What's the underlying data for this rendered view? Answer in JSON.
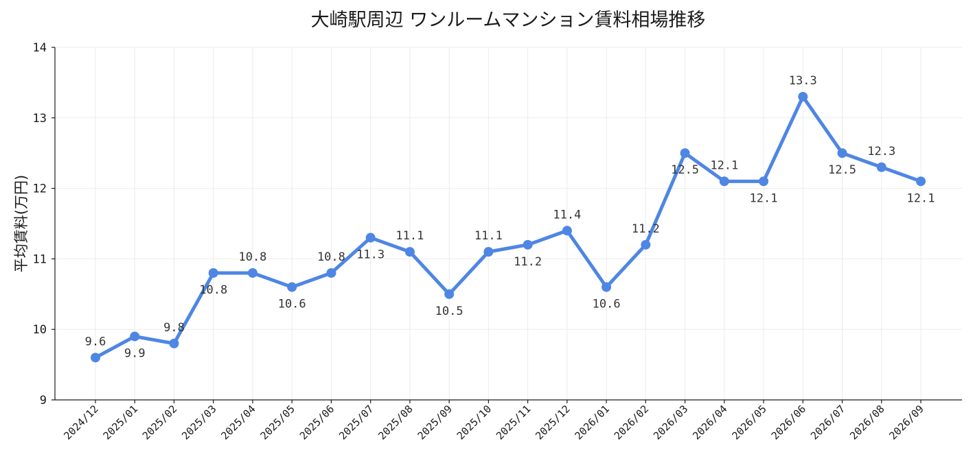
{
  "chart_data": {
    "type": "line",
    "title": "大崎駅周辺 ワンルームマンション賃料相場推移",
    "xlabel": "",
    "ylabel": "平均賃料(万円)",
    "ylim": [
      9,
      14
    ],
    "yticks": [
      9,
      10,
      11,
      12,
      13,
      14
    ],
    "grid": true,
    "categories": [
      "2024/12",
      "2025/01",
      "2025/02",
      "2025/03",
      "2025/04",
      "2025/05",
      "2025/06",
      "2025/07",
      "2025/08",
      "2025/09",
      "2025/10",
      "2025/11",
      "2025/12",
      "2026/01",
      "2026/02",
      "2026/03",
      "2026/04",
      "2026/05",
      "2026/06",
      "2026/07",
      "2026/08",
      "2026/09"
    ],
    "series": [
      {
        "values": [
          9.6,
          9.9,
          9.8,
          10.8,
          10.8,
          10.6,
          10.8,
          11.3,
          11.1,
          10.5,
          11.1,
          11.2,
          11.4,
          10.6,
          11.2,
          12.5,
          12.1,
          12.1,
          13.3,
          12.5,
          12.3,
          12.1
        ],
        "data_labels": [
          "9.6",
          "9.9",
          "9.8",
          "10.8",
          "10.8",
          "10.6",
          "10.8",
          "11.3",
          "11.1",
          "10.5",
          "11.1",
          "11.2",
          "11.4",
          "10.6",
          "11.2",
          "12.5",
          "12.1",
          "12.1",
          "13.3",
          "12.5",
          "12.3",
          "12.1"
        ],
        "label_side": [
          "above",
          "below",
          "above",
          "below",
          "above",
          "below",
          "above",
          "below",
          "above",
          "below",
          "above",
          "below",
          "above",
          "below",
          "above",
          "below",
          "above",
          "below",
          "above",
          "below",
          "above",
          "below"
        ],
        "color": "#4e86e4"
      }
    ]
  }
}
